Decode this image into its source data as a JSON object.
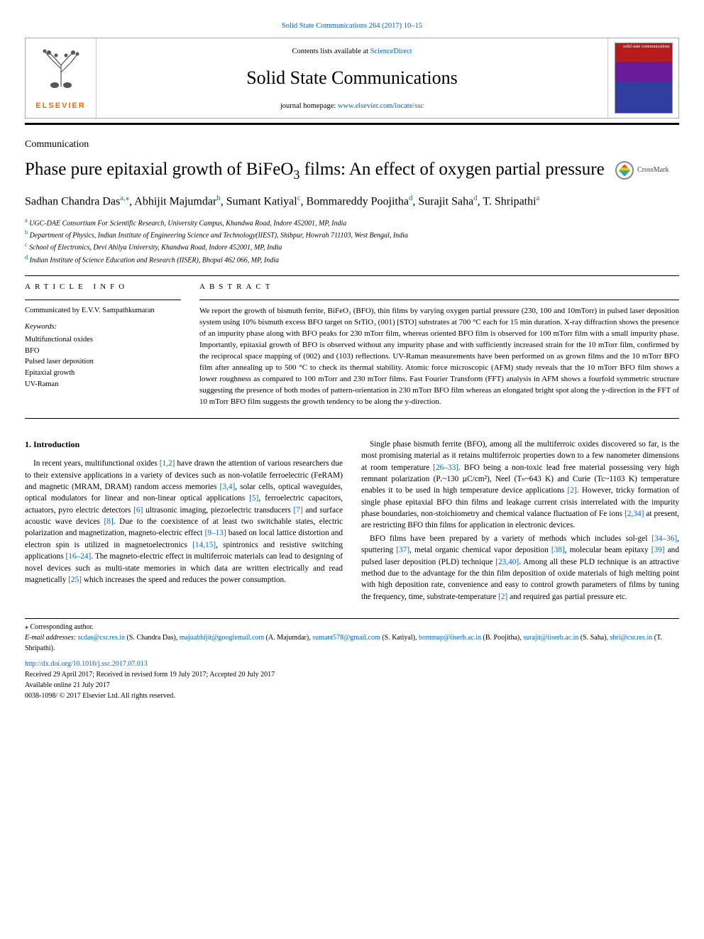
{
  "header": {
    "top_link": "Solid State Communications 264 (2017) 10–15",
    "contents_line_pre": "Contents lists available at ",
    "contents_line_link": "ScienceDirect",
    "journal_name": "Solid State Communications",
    "homepage_pre": "journal homepage: ",
    "homepage_link": "www.elsevier.com/locate/ssc",
    "elsevier": "ELSEVIER",
    "cover_text": "solid state communications"
  },
  "article": {
    "type_label": "Communication",
    "title_pre": "Phase pure epitaxial growth of BiFeO",
    "title_sub": "3",
    "title_post": " films: An effect of oxygen partial pressure",
    "crossmark": "CrossMark"
  },
  "authors": {
    "list": "Sadhan Chandra Das",
    "a1_sup": "a,",
    "a1_ast": "⁎",
    "a2": ", Abhijit Majumdar",
    "a2_sup": "b",
    "a3": ", Sumant Katiyal",
    "a3_sup": "c",
    "a4": ", Bommareddy Poojitha",
    "a4_sup": "d",
    "a5": ", Surajit Saha",
    "a5_sup": "d",
    "a6": ", T. Shripathi",
    "a6_sup": "a"
  },
  "affiliations": {
    "a": "UGC-DAE Consortium For Scientific Research, University Campus, Khandwa Road, Indore 452001, MP, India",
    "b": "Department of Physics, Indian Institute of Engineering Science and Technology(IIEST), Shibpur, Howrah 711103, West Bengal, India",
    "c": "School of Electronics, Devi Ahilya University, Khandwa Road, Indore 452001, MP, India",
    "d": "Indian Institute of Science Education and Research (IISER), Bhopal 462 066, MP, India"
  },
  "info": {
    "heading": "ARTICLE INFO",
    "communicated": "Communicated by E.V.V. Sampathkumaran",
    "kw_label": "Keywords:",
    "keywords": [
      "Multifunctional oxides",
      "BFO",
      "Pulsed laser deposition",
      "Epitaxial growth",
      "UV-Raman"
    ]
  },
  "abstract": {
    "heading": "ABSTRACT",
    "text": "We report the growth of bismuth ferrite, BiFeO₃ (BFO), thin films by varying oxygen partial pressure (230, 100 and 10mTorr) in pulsed laser deposition system using 10% bismuth excess BFO target on SrTiO₃ (001) [STO] substrates at 700 °C each for 15 min duration. X-ray diffraction shows the presence of an impurity phase along with BFO peaks for 230 mTorr film, whereas oriented BFO film is observed for 100 mTorr film with a small impurity phase. Importantly, epitaxial growth of BFO is observed without any impurity phase and with sufficiently increased strain for the 10 mTorr film, confirmed by the reciprocal space mapping of (002) and (103) reflections. UV-Raman measurements have been performed on as grown films and the 10 mTorr BFO film after annealing up to 500 °C to check its thermal stability. Atomic force microscopic (AFM) study reveals that the 10 mTorr BFO film shows a lower roughness as compared to 100 mTorr and 230 mTorr films. Fast Fourier Transform (FFT) analysis in AFM shows a fourfold symmetric structure suggesting the presence of both modes of pattern-orientation in 230 mTorr BFO film whereas an elongated bright spot along the y-direction in the FFT of 10 mTorr BFO film suggests the growth tendency to be along the y-direction."
  },
  "intro": {
    "heading": "1. Introduction",
    "p1_a": "In recent years, multifunctional oxides ",
    "p1_r1": "[1,2]",
    "p1_b": " have drawn the attention of various researchers due to their extensive applications in a variety of devices such as non-volatile ferroelectric (FeRAM) and magnetic (MRAM, DRAM) random access memories ",
    "p1_r2": "[3,4]",
    "p1_c": ", solar cells, optical waveguides, optical modulators for linear and non-linear optical applications ",
    "p1_r3": "[5]",
    "p1_d": ", ferroelectric capacitors, actuators, pyro electric detectors ",
    "p1_r4": "[6]",
    "p1_e": " ultrasonic imaging, piezoelectric transducers ",
    "p1_r5": "[7]",
    "p1_f": " and surface acoustic wave devices ",
    "p1_r6": "[8]",
    "p1_g": ". Due to the coexistence of at least two switchable states, electric polarization and magnetization, magneto-electric effect ",
    "p1_r7": "[9–13]",
    "p1_h": " based on local lattice distortion and electron spin is utilized in magnetoelectronics ",
    "p1_r8": "[14,15]",
    "p1_i": ", spintronics and resistive switching applications ",
    "p1_r9": "[16–24]",
    "p1_j": ". The magneto-electric effect in multiferroic materials can lead to designing of novel devices such as multi-state memories in which data are written electrically and read magnetically ",
    "p1_r10": "[25]",
    "p1_k": " which increases the speed and reduces the power consumption.",
    "p2": "Single phase bismuth ferrite (BFO), among all the multiferroic oxides discovered so far, is the most promising material as it retains multiferroic properties down to a few nanometer dimensions at room temperature ",
    "p2_r1": "[26–33]",
    "p2_b": ". BFO being a non-toxic lead free material possessing very high remnant polarization (Pᵣ~130 µC/cm²), Neel (Tₙ~643 K) and Curie (Tc~1103 K) temperature enables it to be used in high temperature device applications ",
    "p2_r2": "[2]",
    "p2_c": ". However, tricky formation of single phase epitaxial BFO thin films and leakage current crisis interrelated with the impurity phase boundaries, non-stoichiometry and chemical valance fluctuation of Fe ions ",
    "p2_r3": "[2,34]",
    "p2_d": " at present, are restricting BFO thin films for application in electronic devices.",
    "p3_a": "BFO films have been prepared by a variety of methods which includes sol-gel ",
    "p3_r1": "[34–36]",
    "p3_b": ", sputtering ",
    "p3_r2": "[37]",
    "p3_c": ", metal organic chemical vapor deposition ",
    "p3_r3": "[38]",
    "p3_d": ", molecular beam epitaxy ",
    "p3_r4": "[39]",
    "p3_e": " and pulsed laser deposition (PLD) technique ",
    "p3_r5": "[23,40]",
    "p3_f": ". Among all these PLD technique is an attractive method due to the advantage for the thin film deposition of oxide materials of high melting point with high deposition rate, convenience and easy to control growth parameters of films by tuning the frequency, time, substrate-temperature ",
    "p3_r6": "[2]",
    "p3_g": " and required gas partial pressure etc."
  },
  "footer": {
    "corresponding": "⁎ Corresponding author.",
    "email_label": "E-mail addresses: ",
    "emails": [
      {
        "addr": "scdas@csr.res.in",
        "name": " (S. Chandra Das), "
      },
      {
        "addr": "majuabhijit@googlemail.com",
        "name": " (A. Majumdar), "
      },
      {
        "addr": "sumant578@gmail.com",
        "name": " (S. Katiyal), "
      },
      {
        "addr": "bommap@iiserb.ac.in",
        "name": " (B. Poojitha), "
      },
      {
        "addr": "surajit@iiserb.ac.in",
        "name": " (S. Saha), "
      },
      {
        "addr": "shri@csr.res.in",
        "name": " (T. Shripathi)."
      }
    ],
    "doi": "http://dx.doi.org/10.1016/j.ssc.2017.07.013",
    "received": "Received 29 April 2017; Received in revised form 19 July 2017; Accepted 20 July 2017",
    "available": "Available online 21 July 2017",
    "copyright": "0038-1098/ © 2017 Elsevier Ltd. All rights reserved."
  },
  "colors": {
    "link": "#0066cc",
    "elsevier_orange": "#ff6600",
    "cover_red": "#b71c1c",
    "cover_purple": "#6a1b9a",
    "cover_blue": "#303f9f"
  }
}
